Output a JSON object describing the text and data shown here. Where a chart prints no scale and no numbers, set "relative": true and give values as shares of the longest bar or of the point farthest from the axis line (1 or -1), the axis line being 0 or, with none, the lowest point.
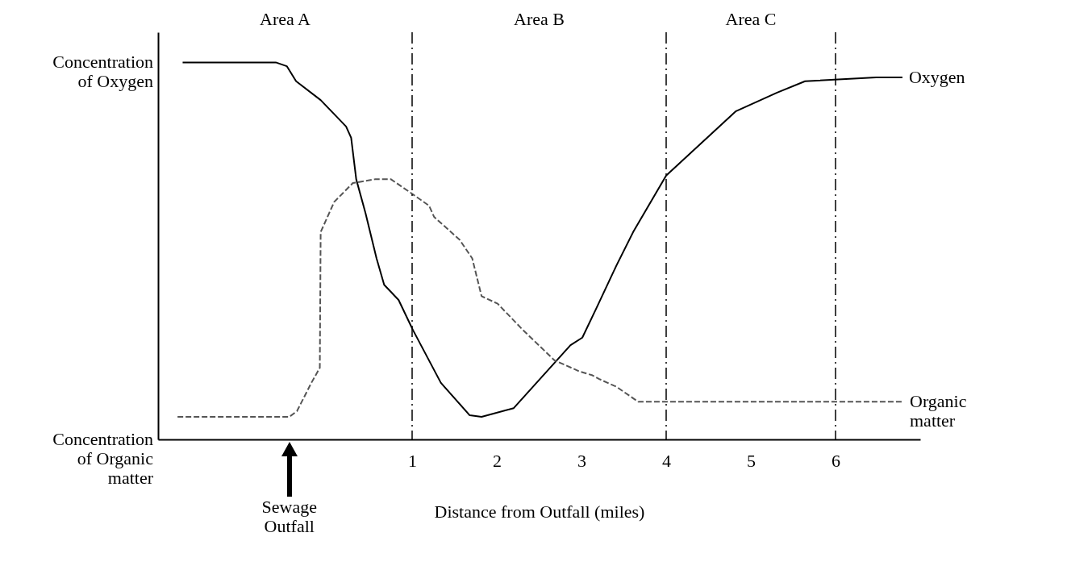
{
  "chart_data": {
    "type": "line",
    "relative": true,
    "xlabel": "Distance from Outfall (miles)",
    "xlim": [
      -2,
      7
    ],
    "xticks": [
      1,
      2,
      3,
      4,
      5,
      6
    ],
    "series": [
      {
        "name": "Oxygen",
        "color": "#000000",
        "line_style": "solid",
        "x": [
          -1.71,
          -0.61,
          -0.48,
          -0.37,
          -0.08,
          0.22,
          0.28,
          0.34,
          0.45,
          0.58,
          0.67,
          0.84,
          1.01,
          1.34,
          1.68,
          1.82,
          2.2,
          2.87,
          3.01,
          3.18,
          3.41,
          3.61,
          4.0,
          4.82,
          5.31,
          5.64,
          6.48,
          6.79
        ],
        "values": [
          1.0,
          1.0,
          0.99,
          0.95,
          0.9,
          0.83,
          0.8,
          0.69,
          0.6,
          0.48,
          0.41,
          0.37,
          0.29,
          0.15,
          0.064,
          0.06,
          0.083,
          0.25,
          0.27,
          0.35,
          0.46,
          0.55,
          0.7,
          0.87,
          0.92,
          0.95,
          0.96,
          0.96
        ]
      },
      {
        "name": "Organic matter",
        "color": "#555555",
        "line_style": "dashed",
        "x": [
          -1.77,
          -0.45,
          -0.36,
          -0.19,
          -0.09,
          -0.08,
          0.08,
          0.3,
          0.56,
          0.75,
          1.01,
          1.2,
          1.26,
          1.56,
          1.71,
          1.82,
          2.01,
          2.31,
          2.68,
          2.98,
          3.13,
          3.21,
          3.41,
          3.67,
          6.8
        ],
        "values": [
          0.06,
          0.06,
          0.075,
          0.15,
          0.19,
          0.55,
          0.63,
          0.68,
          0.69,
          0.69,
          0.65,
          0.62,
          0.59,
          0.53,
          0.48,
          0.38,
          0.36,
          0.29,
          0.21,
          0.18,
          0.17,
          0.16,
          0.14,
          0.1,
          0.1
        ]
      }
    ],
    "ref_lines": [
      {
        "axis": "x",
        "value": 1
      },
      {
        "axis": "x",
        "value": 4
      },
      {
        "axis": "x",
        "value": 6
      }
    ],
    "annotations": [
      "Concentration of Oxygen",
      "Concentration of Organic matter",
      "Area A",
      "Area B",
      "Area C",
      "Sewage Outfall"
    ]
  }
}
